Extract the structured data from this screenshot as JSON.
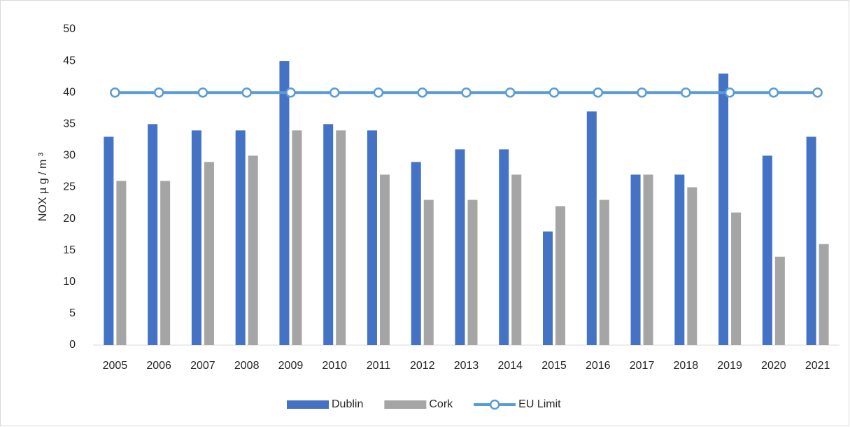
{
  "chart_data": {
    "type": "bar",
    "y_label": "NOX µ g / m ³",
    "categories": [
      "2005",
      "2006",
      "2007",
      "2008",
      "2009",
      "2010",
      "2011",
      "2012",
      "2013",
      "2014",
      "2015",
      "2016",
      "2017",
      "2018",
      "2019",
      "2020",
      "2021"
    ],
    "series": [
      {
        "name": "Dublin",
        "color": "#4472c4",
        "values": [
          33,
          35,
          34,
          34,
          45,
          35,
          34,
          29,
          31,
          31,
          18,
          37,
          27,
          27,
          43,
          30,
          33
        ]
      },
      {
        "name": "Cork",
        "color": "#a5a5a5",
        "values": [
          26,
          26,
          29,
          30,
          34,
          34,
          27,
          23,
          23,
          27,
          22,
          23,
          27,
          25,
          21,
          14,
          16
        ]
      },
      {
        "name": "EU Limit",
        "type": "line",
        "color": "#5b9bd5",
        "values": [
          40,
          40,
          40,
          40,
          40,
          40,
          40,
          40,
          40,
          40,
          40,
          40,
          40,
          40,
          40,
          40,
          40
        ]
      }
    ],
    "ylim": [
      0,
      50
    ],
    "yticks": [
      0,
      5,
      10,
      15,
      20,
      25,
      30,
      35,
      40,
      45,
      50
    ],
    "grid": false,
    "legend": "bottom"
  }
}
